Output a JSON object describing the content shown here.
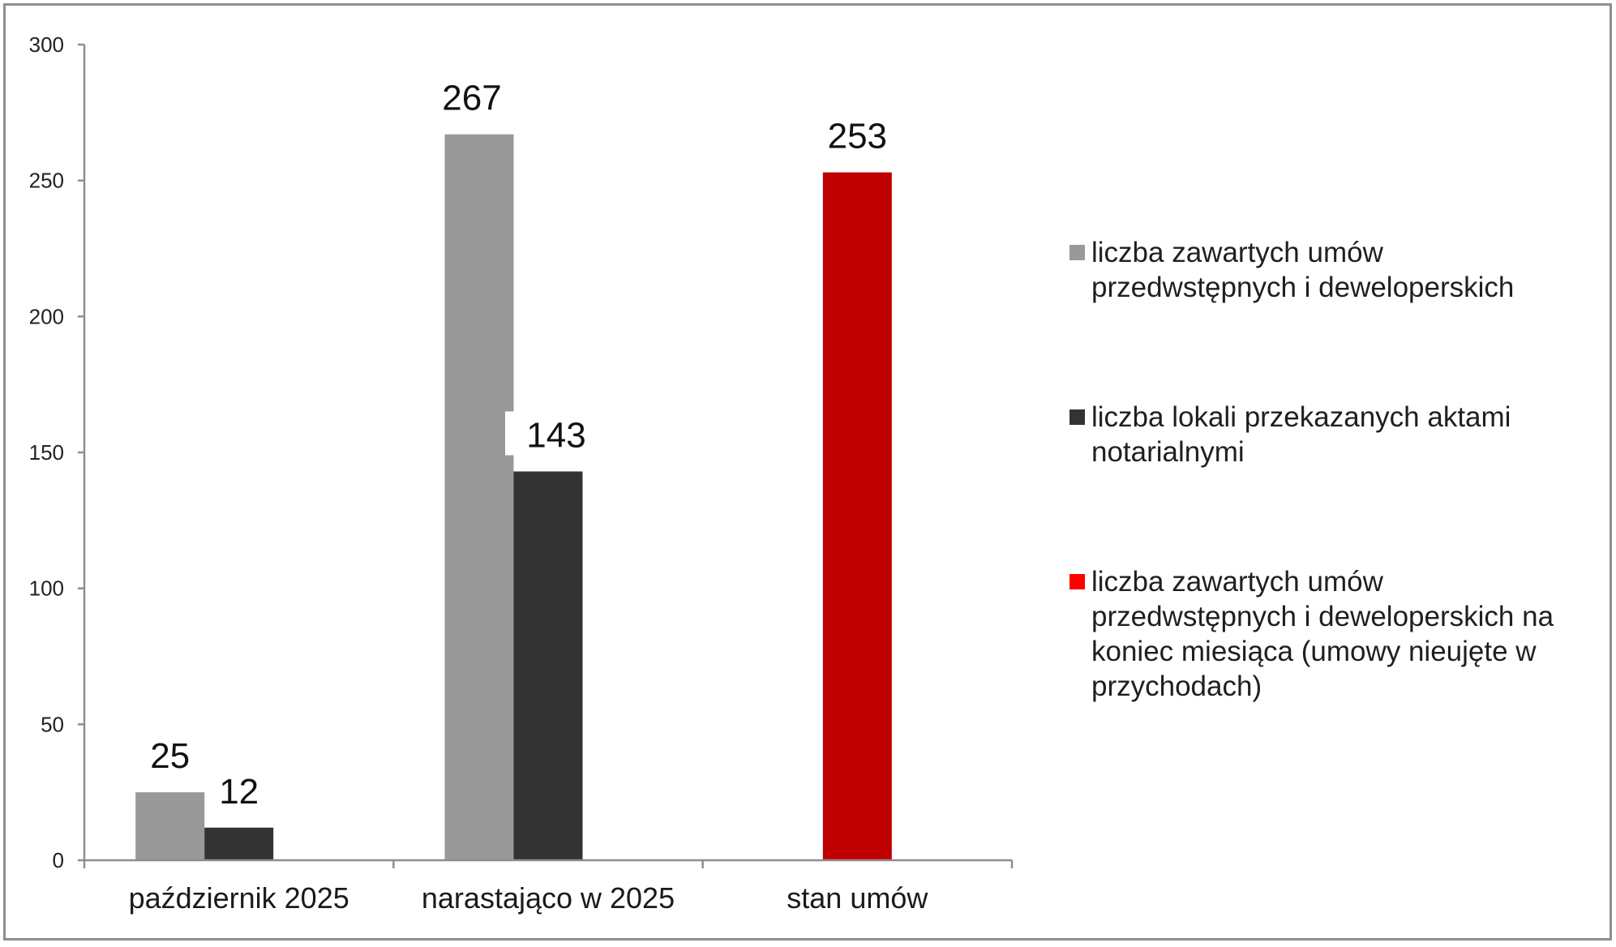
{
  "chart_data": {
    "type": "bar",
    "categories": [
      "październik 2025",
      "narastająco w 2025",
      "stan umów"
    ],
    "series": [
      {
        "name": "liczba zawartych umów przedwstępnych i deweloperskich",
        "values": [
          25,
          267,
          null
        ],
        "color": "#999999"
      },
      {
        "name": "liczba lokali przekazanych aktami notarialnymi",
        "values": [
          12,
          143,
          null
        ],
        "color": "#333333"
      },
      {
        "name": "liczba zawartych umów przedwstępnych i deweloperskich na koniec miesiąca (umowy nieujęte w przychodach)",
        "values": [
          null,
          null,
          253
        ],
        "color": "#c00000",
        "legend_color": "#ff0000"
      }
    ],
    "ylim": [
      0,
      300
    ],
    "yticks": [
      0,
      50,
      100,
      150,
      200,
      250,
      300
    ],
    "data_labels": true,
    "grid": false,
    "legend_position": "right"
  }
}
